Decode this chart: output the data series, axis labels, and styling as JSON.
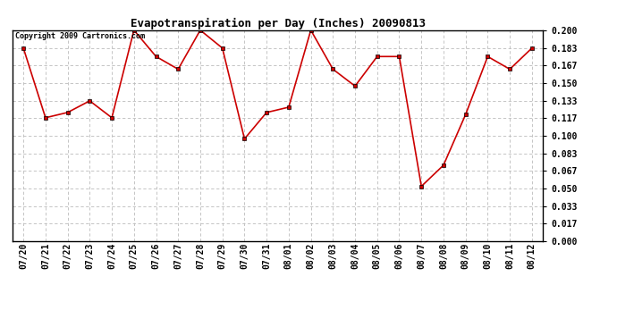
{
  "title": "Evapotranspiration per Day (Inches) 20090813",
  "copyright_text": "Copyright 2009 Cartronics.com",
  "categories": [
    "07/20",
    "07/21",
    "07/22",
    "07/23",
    "07/24",
    "07/25",
    "07/26",
    "07/27",
    "07/28",
    "07/29",
    "07/30",
    "07/31",
    "08/01",
    "08/02",
    "08/03",
    "08/04",
    "08/05",
    "08/06",
    "08/07",
    "08/08",
    "08/09",
    "08/10",
    "08/11",
    "08/12"
  ],
  "values": [
    0.183,
    0.117,
    0.122,
    0.133,
    0.117,
    0.2,
    0.175,
    0.163,
    0.2,
    0.183,
    0.097,
    0.122,
    0.127,
    0.2,
    0.163,
    0.147,
    0.175,
    0.175,
    0.052,
    0.072,
    0.12,
    0.175,
    0.163,
    0.183
  ],
  "line_color": "#cc0000",
  "marker": "s",
  "marker_size": 3,
  "bg_color": "#ffffff",
  "grid_color": "#bbbbbb",
  "ylim": [
    0.0,
    0.2
  ],
  "yticks": [
    0.0,
    0.017,
    0.033,
    0.05,
    0.067,
    0.083,
    0.1,
    0.117,
    0.133,
    0.15,
    0.167,
    0.183,
    0.2
  ],
  "title_fontsize": 9,
  "tick_fontsize": 7,
  "copyright_fontsize": 6
}
